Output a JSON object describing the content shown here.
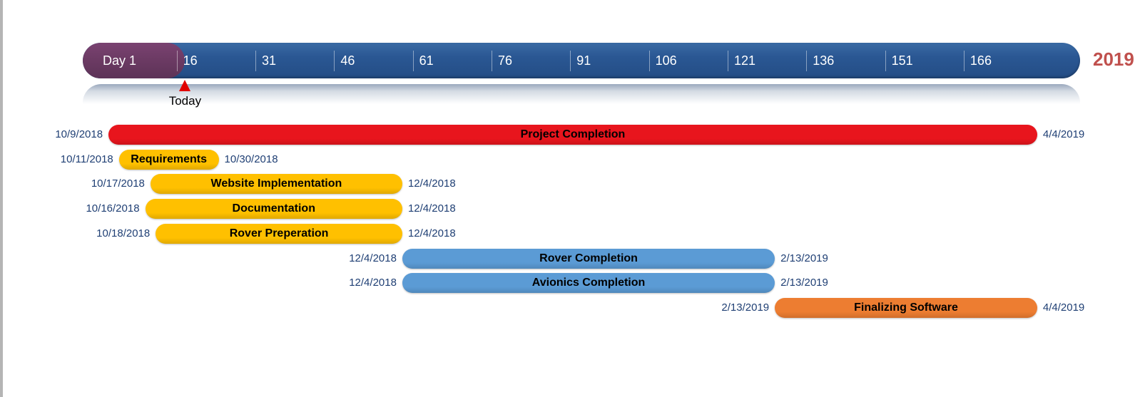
{
  "chart_data": {
    "type": "gantt",
    "year_label": "2019",
    "today_label": "Today",
    "axis": {
      "ticks": [
        {
          "value": 1,
          "label": "Day 1"
        },
        {
          "value": 16,
          "label": "16"
        },
        {
          "value": 31,
          "label": "31"
        },
        {
          "value": 46,
          "label": "46"
        },
        {
          "value": 61,
          "label": "61"
        },
        {
          "value": 76,
          "label": "76"
        },
        {
          "value": 91,
          "label": "91"
        },
        {
          "value": 106,
          "label": "106"
        },
        {
          "value": 121,
          "label": "121"
        },
        {
          "value": 136,
          "label": "136"
        },
        {
          "value": 151,
          "label": "151"
        },
        {
          "value": 166,
          "label": "166"
        }
      ],
      "today_day": 17.5
    },
    "tasks": [
      {
        "name": "Project Completion",
        "start": "10/9/2018",
        "end": "4/4/2019",
        "start_day": 3,
        "end_day": 180,
        "color": "#e8151d"
      },
      {
        "name": "Requirements",
        "start": "10/11/2018",
        "end": "10/30/2018",
        "start_day": 5,
        "end_day": 24,
        "color": "#ffc000"
      },
      {
        "name": "Website Implementation",
        "start": "10/17/2018",
        "end": "12/4/2018",
        "start_day": 11,
        "end_day": 59,
        "color": "#ffc000"
      },
      {
        "name": "Documentation",
        "start": "10/16/2018",
        "end": "12/4/2018",
        "start_day": 10,
        "end_day": 59,
        "color": "#ffc000"
      },
      {
        "name": "Rover Preperation",
        "start": "10/18/2018",
        "end": "12/4/2018",
        "start_day": 12,
        "end_day": 59,
        "color": "#ffc000"
      },
      {
        "name": "Rover Completion",
        "start": "12/4/2018",
        "end": "2/13/2019",
        "start_day": 59,
        "end_day": 130,
        "color": "#5b9bd5"
      },
      {
        "name": "Avionics Completion",
        "start": "12/4/2018",
        "end": "2/13/2019",
        "start_day": 59,
        "end_day": 130,
        "color": "#5b9bd5"
      },
      {
        "name": "Finalizing Software",
        "start": "2/13/2019",
        "end": "4/4/2019",
        "start_day": 130,
        "end_day": 180,
        "color": "#ed7d31"
      }
    ]
  }
}
